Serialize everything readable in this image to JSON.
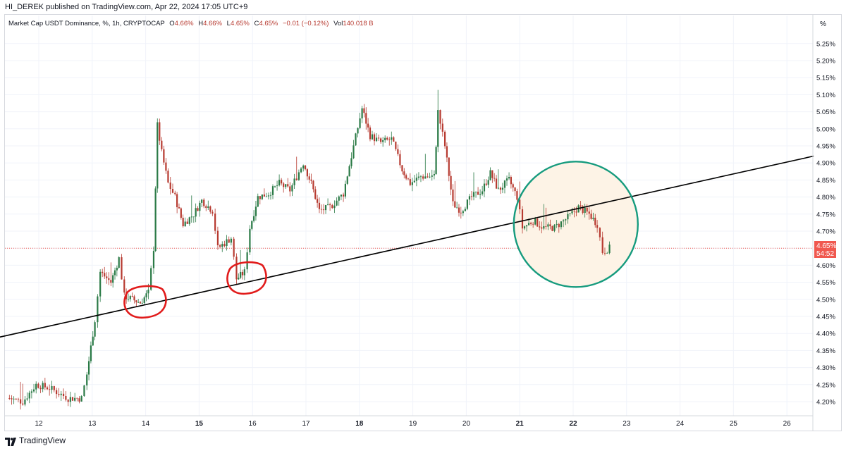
{
  "header": {
    "publish_line": "HI_DEREK published on TradingView.com, Apr 22, 2024 17:05 UTC+9"
  },
  "legend": {
    "symbol": "Market Cap USDT Dominance, %, 1h, CRYPTOCAP",
    "o_label": "O",
    "o_value": "4.66%",
    "h_label": "H",
    "h_value": "4.66%",
    "l_label": "L",
    "l_value": "4.65%",
    "c_label": "C",
    "c_value": "4.65%",
    "change": "−0.01 (−0.12%)",
    "vol_label": "Vol",
    "vol_value": "140.018 B"
  },
  "price_scale": {
    "unit": "%",
    "current_price": "4.65%",
    "countdown": "54:52"
  },
  "footer": {
    "brand": "TradingView",
    "logo_icon": "tradingview-logo-icon"
  },
  "colors": {
    "up": "#26a69a",
    "down": "#ef5350",
    "candle_body_up": "#2a7a46",
    "candle_body_down": "#b73a30",
    "trendline": "#000000",
    "circle_red": "#e11b1b",
    "circle_green": "#169b7e",
    "circle_fill": "#fdf3e6",
    "price_tag": "#f0584f"
  },
  "chart_data": {
    "type": "candlestick",
    "title": "Market Cap USDT Dominance, %, 1h, CRYPTOCAP",
    "ylim": [
      4.17,
      5.28
    ],
    "yticks": [
      "4.20%",
      "4.25%",
      "4.30%",
      "4.35%",
      "4.40%",
      "4.45%",
      "4.50%",
      "4.55%",
      "4.60%",
      "4.65%",
      "4.70%",
      "4.75%",
      "4.80%",
      "4.85%",
      "4.90%",
      "4.95%",
      "5.00%",
      "5.05%",
      "5.10%",
      "5.15%",
      "5.20%",
      "5.25%"
    ],
    "xticks": [
      "12",
      "13",
      "14",
      "15",
      "16",
      "17",
      "18",
      "19",
      "20",
      "21",
      "22",
      "23",
      "24",
      "25",
      "26"
    ],
    "xticks_bold": [
      "15",
      "18",
      "21",
      "22"
    ],
    "x_unit": "day of month (April 2024), hourly candles",
    "grid": true,
    "last_price": 4.65,
    "keypoints": [
      [
        11.45,
        4.21
      ],
      [
        11.7,
        4.2
      ],
      [
        11.95,
        4.25
      ],
      [
        12.2,
        4.24
      ],
      [
        12.55,
        4.21
      ],
      [
        12.8,
        4.21
      ],
      [
        12.9,
        4.28
      ],
      [
        13.05,
        4.44
      ],
      [
        13.15,
        4.58
      ],
      [
        13.35,
        4.55
      ],
      [
        13.5,
        4.62
      ],
      [
        13.6,
        4.51
      ],
      [
        13.75,
        4.5
      ],
      [
        13.9,
        4.49
      ],
      [
        14.05,
        4.52
      ],
      [
        14.15,
        4.65
      ],
      [
        14.22,
        5.01
      ],
      [
        14.3,
        4.93
      ],
      [
        14.42,
        4.84
      ],
      [
        14.55,
        4.8
      ],
      [
        14.7,
        4.72
      ],
      [
        14.9,
        4.75
      ],
      [
        15.05,
        4.79
      ],
      [
        15.25,
        4.76
      ],
      [
        15.35,
        4.65
      ],
      [
        15.6,
        4.68
      ],
      [
        15.7,
        4.56
      ],
      [
        15.85,
        4.58
      ],
      [
        15.95,
        4.71
      ],
      [
        16.1,
        4.8
      ],
      [
        16.3,
        4.81
      ],
      [
        16.5,
        4.84
      ],
      [
        16.7,
        4.82
      ],
      [
        16.95,
        4.9
      ],
      [
        17.1,
        4.84
      ],
      [
        17.25,
        4.76
      ],
      [
        17.45,
        4.77
      ],
      [
        17.7,
        4.81
      ],
      [
        17.85,
        4.92
      ],
      [
        18.05,
        5.06
      ],
      [
        18.2,
        4.98
      ],
      [
        18.4,
        4.96
      ],
      [
        18.6,
        4.97
      ],
      [
        18.8,
        4.88
      ],
      [
        18.95,
        4.84
      ],
      [
        19.15,
        4.86
      ],
      [
        19.4,
        4.86
      ],
      [
        19.47,
        5.05
      ],
      [
        19.6,
        4.95
      ],
      [
        19.75,
        4.78
      ],
      [
        19.9,
        4.76
      ],
      [
        20.1,
        4.8
      ],
      [
        20.3,
        4.82
      ],
      [
        20.45,
        4.87
      ],
      [
        20.6,
        4.82
      ],
      [
        20.8,
        4.85
      ],
      [
        20.95,
        4.8
      ],
      [
        21.05,
        4.71
      ],
      [
        21.25,
        4.73
      ],
      [
        21.45,
        4.71
      ],
      [
        21.65,
        4.71
      ],
      [
        21.9,
        4.74
      ],
      [
        22.1,
        4.77
      ],
      [
        22.3,
        4.75
      ],
      [
        22.45,
        4.72
      ],
      [
        22.55,
        4.64
      ],
      [
        22.68,
        4.65
      ]
    ],
    "annotations": [
      {
        "type": "trendline",
        "from": [
          11.0,
          4.38
        ],
        "to": [
          26.5,
          4.92
        ]
      },
      {
        "type": "hand-drawn circle",
        "color": "red",
        "center": [
          14.0,
          4.49
        ]
      },
      {
        "type": "hand-drawn circle",
        "color": "red",
        "center": [
          15.9,
          4.56
        ]
      },
      {
        "type": "circle",
        "color": "green",
        "center": [
          22.05,
          4.72
        ]
      }
    ]
  }
}
